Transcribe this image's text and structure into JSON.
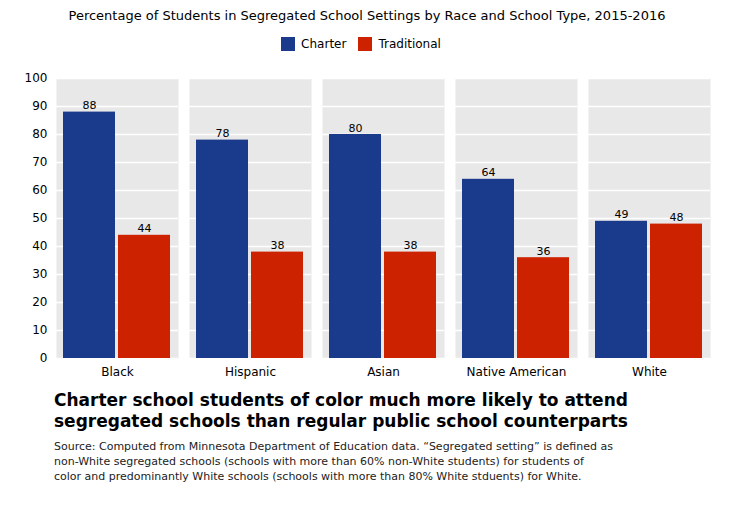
{
  "chart_data": {
    "type": "bar",
    "title": "Percentage of Students in Segregated School Settings by Race and School Type, 2015-2016",
    "subtitle": "Charter school students of color much more likely to attend\nsegregated schools than regular public school counterparts",
    "source": "Source: Computed from Minnesota Department of Education data. “Segregated setting” is defined as\nnon-White segregated schools (schools with more than 60% non-White students) for students of\ncolor and predominantly White schools (schools with more than 80% White stduents) for White.",
    "categories": [
      "Black",
      "Hispanic",
      "Asian",
      "Native American",
      "White"
    ],
    "series": [
      {
        "name": "Charter",
        "color": "#1a3a8c",
        "values": [
          88,
          78,
          80,
          64,
          49
        ]
      },
      {
        "name": "Traditional",
        "color": "#cc2200",
        "values": [
          44,
          38,
          38,
          36,
          48
        ]
      }
    ],
    "ylim": [
      0,
      100
    ],
    "yticks": [
      0,
      10,
      20,
      30,
      40,
      50,
      60,
      70,
      80,
      90,
      100
    ],
    "grid": true,
    "legend": "top",
    "data_labels": true
  }
}
